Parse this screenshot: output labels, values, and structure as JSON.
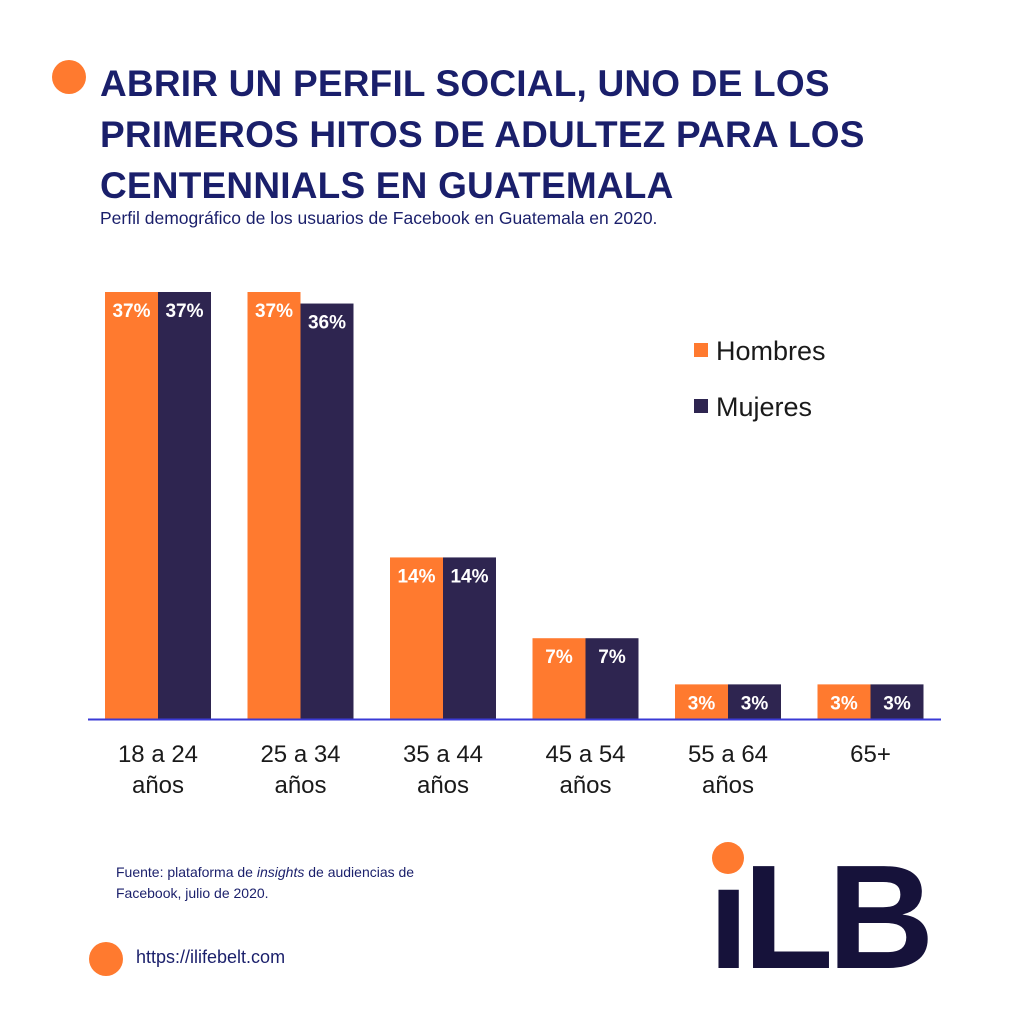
{
  "header": {
    "title_lines": [
      "ABRIR UN PERFIL SOCIAL, UNO DE LOS",
      "PRIMEROS HITOS DE ADULTEZ PARA LOS",
      "CENTENNIALS EN GUATEMALA"
    ],
    "subtitle": "Perfil demográfico de los usuarios de Facebook en Guatemala en 2020."
  },
  "chart_data": {
    "type": "bar",
    "title": "",
    "xlabel": "",
    "ylabel": "",
    "categories": [
      [
        "18 a 24",
        "años"
      ],
      [
        "25 a 34",
        "años"
      ],
      [
        "35 a 44",
        "años"
      ],
      [
        "45 a 54",
        "años"
      ],
      [
        "55 a 64",
        "años"
      ],
      [
        "65+"
      ]
    ],
    "series": [
      {
        "name": "Hombres",
        "color": "#FF7A2F",
        "values": [
          37,
          37,
          14,
          7,
          3,
          3
        ],
        "labels": [
          "37%",
          "37%",
          "14%",
          "7%",
          "3%",
          "3%"
        ]
      },
      {
        "name": "Mujeres",
        "color": "#2E2550",
        "values": [
          37,
          36,
          14,
          7,
          3,
          3
        ],
        "labels": [
          "37%",
          "36%",
          "14%",
          "7%",
          "3%",
          "3%"
        ]
      }
    ],
    "ylim": [
      0,
      37
    ],
    "grid": false,
    "legend_position": "top-right",
    "axis_color": "#3A3AD6"
  },
  "source": {
    "prefix": "Fuente: plataforma de ",
    "italic": "insights",
    "suffix": " de audiencias de Facebook, julio de 2020."
  },
  "footer": {
    "url": "https://ilifebelt.com",
    "logo_text": "iLB",
    "logo_color": "#16123A",
    "accent_color": "#FF7A2F"
  }
}
